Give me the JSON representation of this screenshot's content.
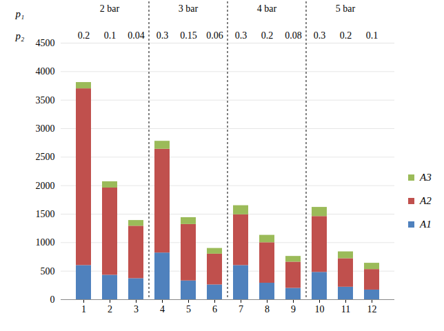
{
  "chart_data": {
    "type": "bar",
    "stacked": true,
    "grid": true,
    "legend": "right",
    "categories": [
      "1",
      "2",
      "3",
      "4",
      "5",
      "6",
      "7",
      "8",
      "9",
      "10",
      "11",
      "12"
    ],
    "series": [
      {
        "name": "A1",
        "color": "#4f81bd",
        "values": [
          600,
          430,
          370,
          820,
          330,
          260,
          600,
          290,
          200,
          480,
          220,
          170
        ]
      },
      {
        "name": "A2",
        "color": "#c0504d",
        "values": [
          3100,
          1530,
          920,
          1820,
          990,
          540,
          890,
          710,
          460,
          980,
          500,
          360
        ]
      },
      {
        "name": "A3",
        "color": "#9bbb59",
        "values": [
          110,
          110,
          100,
          140,
          120,
          100,
          160,
          130,
          100,
          160,
          120,
          110
        ]
      }
    ],
    "ylim": [
      0,
      4500
    ],
    "yticks": [
      0,
      500,
      1000,
      1500,
      2000,
      2500,
      3000,
      3500,
      4000,
      4500
    ],
    "annotations": [
      {
        "label": "p₁",
        "texts": [
          "2 bar",
          "3 bar",
          "4 bar",
          "5 bar"
        ]
      },
      {
        "label": "p₂",
        "texts": [
          "0.2",
          "0.1",
          "0.04",
          "0.3",
          "0.15",
          "0.06",
          "0.3",
          "0.2",
          "0.08",
          "0.3",
          "0.2",
          "0.1"
        ]
      }
    ]
  }
}
